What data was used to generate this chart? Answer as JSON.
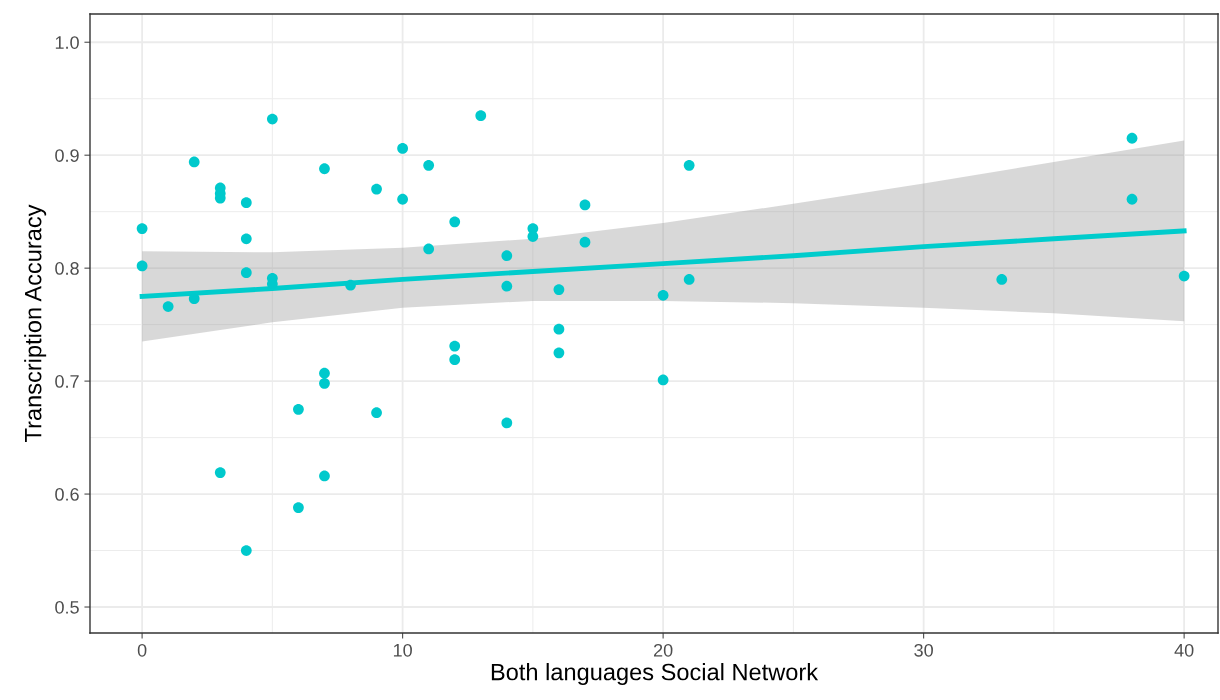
{
  "chart_data": {
    "type": "scatter",
    "xlabel": "Both languages Social Network",
    "ylabel": "Transcription Accuracy",
    "xlim": [
      -2,
      41.3
    ],
    "ylim": [
      0.477,
      1.025
    ],
    "xticks": [
      0,
      10,
      20,
      30,
      40
    ],
    "yticks": [
      {
        "value": 0.5,
        "label": "0.5"
      },
      {
        "value": 0.6,
        "label": "0.6"
      },
      {
        "value": 0.7,
        "label": "0.7"
      },
      {
        "value": 0.8,
        "label": "0.8"
      },
      {
        "value": 0.9,
        "label": "0.9"
      },
      {
        "value": 1.0,
        "label": "1.0"
      }
    ],
    "grid": true,
    "series": [
      {
        "marker": "circle",
        "color": "#00c9cc",
        "x": [
          0,
          0,
          1,
          2,
          2,
          3,
          3,
          3,
          3,
          4,
          4,
          4,
          4,
          5,
          5,
          5,
          6,
          6,
          7,
          7,
          7,
          7,
          8,
          9,
          9,
          10,
          10,
          11,
          11,
          12,
          12,
          12,
          13,
          14,
          14,
          14,
          15,
          15,
          16,
          16,
          16,
          17,
          17,
          20,
          20,
          21,
          21,
          33,
          38,
          38,
          40
        ],
        "values": [
          0.835,
          0.802,
          0.766,
          0.894,
          0.773,
          0.871,
          0.866,
          0.862,
          0.619,
          0.858,
          0.826,
          0.796,
          0.55,
          0.932,
          0.791,
          0.786,
          0.675,
          0.588,
          0.888,
          0.707,
          0.698,
          0.616,
          0.785,
          0.87,
          0.672,
          0.906,
          0.861,
          0.891,
          0.817,
          0.841,
          0.731,
          0.719,
          0.935,
          0.811,
          0.784,
          0.663,
          0.835,
          0.828,
          0.781,
          0.746,
          0.725,
          0.856,
          0.823,
          0.776,
          0.701,
          0.891,
          0.79,
          0.79,
          0.915,
          0.861,
          0.793
        ]
      },
      {
        "type": "line",
        "color": "#00cccc",
        "x": [
          0,
          5,
          10,
          15,
          20,
          25,
          30,
          35,
          40
        ],
        "values": [
          0.775,
          0.782,
          0.79,
          0.797,
          0.804,
          0.811,
          0.819,
          0.826,
          0.833
        ],
        "lower": [
          0.735,
          0.752,
          0.765,
          0.771,
          0.771,
          0.769,
          0.765,
          0.76,
          0.753
        ],
        "upper": [
          0.815,
          0.814,
          0.818,
          0.826,
          0.84,
          0.857,
          0.875,
          0.894,
          0.913
        ]
      }
    ]
  }
}
